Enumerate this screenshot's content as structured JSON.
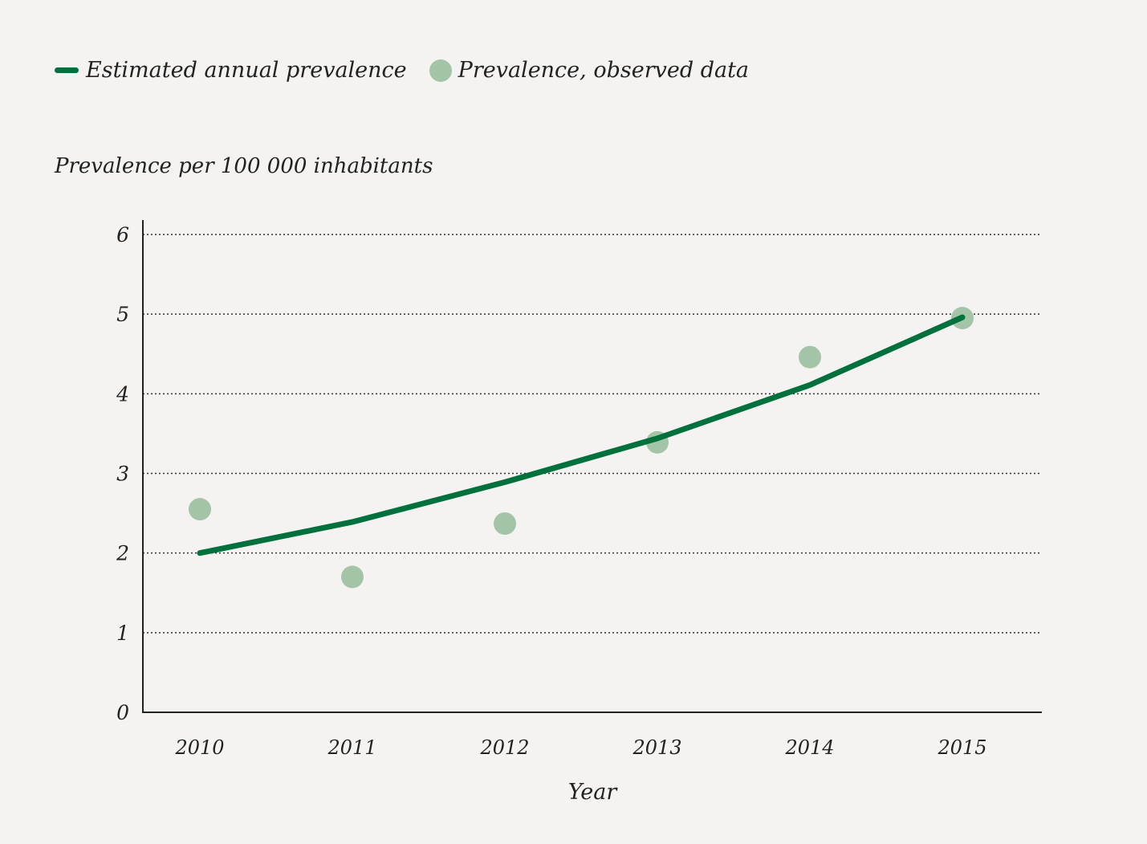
{
  "chart_data": {
    "type": "line",
    "title": "",
    "xlabel": "Year",
    "ylabel": "Prevalence per 100 000 inhabitants",
    "categories": [
      "2010",
      "2011",
      "2012",
      "2013",
      "2014",
      "2015"
    ],
    "ylim": [
      0,
      6
    ],
    "yticks": [
      "0",
      "1",
      "2",
      "3",
      "4",
      "5",
      "6"
    ],
    "grid": "horizontal dotted",
    "legend_position": "top-left",
    "series": [
      {
        "name": "Estimated annual prevalence",
        "type": "line",
        "color": "#00703c",
        "values": [
          2.0,
          2.39,
          2.89,
          3.44,
          4.11,
          4.96
        ]
      },
      {
        "name": "Prevalence, observed data",
        "type": "scatter",
        "color": "#a3c4a6",
        "values": [
          2.55,
          1.7,
          2.37,
          3.39,
          4.46,
          4.95
        ]
      }
    ]
  }
}
